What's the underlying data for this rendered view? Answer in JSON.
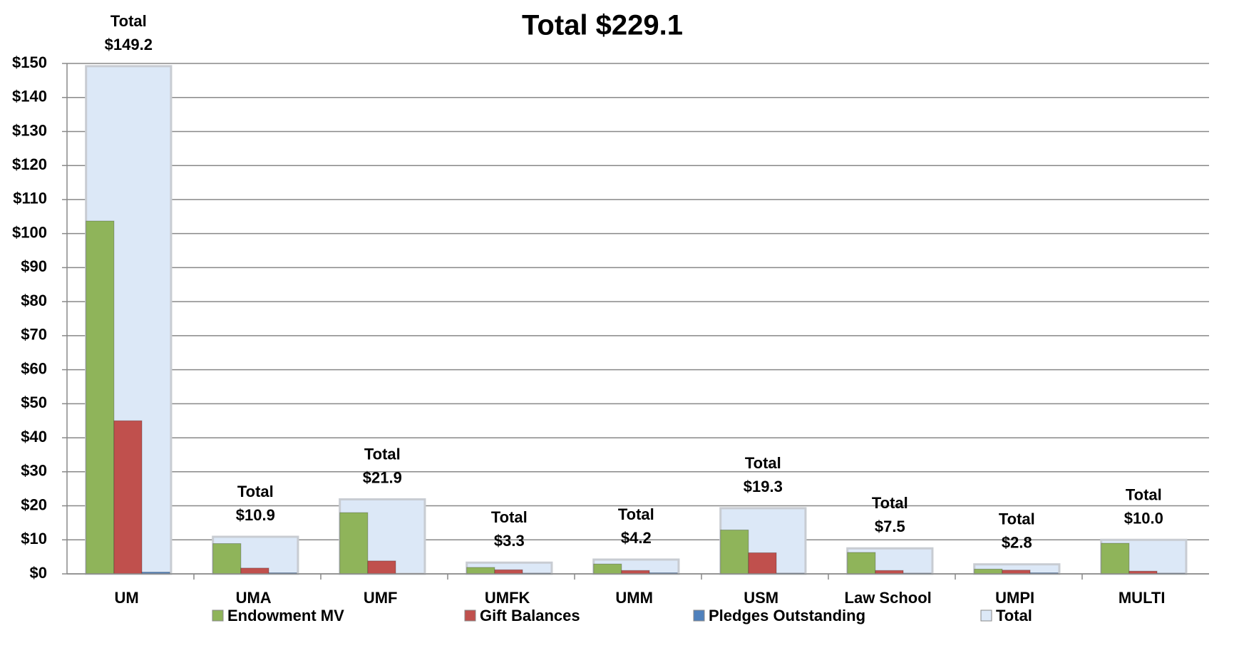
{
  "chart_data": {
    "type": "bar",
    "title": "Total $229.1",
    "categories": [
      "UM",
      "UMA",
      "UMF",
      "UMFK",
      "UMM",
      "USM",
      "Law School",
      "UMPI",
      "MULTI"
    ],
    "series": [
      {
        "name": "Endowment MV",
        "color": "#8fb45a",
        "values": [
          103.7,
          8.9,
          18.0,
          1.9,
          2.9,
          12.9,
          6.3,
          1.4,
          9.0
        ]
      },
      {
        "name": "Gift Balances",
        "color": "#c0504d",
        "values": [
          45.0,
          1.7,
          3.8,
          1.2,
          1.0,
          6.2,
          1.0,
          1.1,
          0.8
        ]
      },
      {
        "name": "Pledges Outstanding",
        "color": "#4f81bd",
        "values": [
          0.5,
          0.3,
          0.1,
          0.2,
          0.3,
          0.2,
          0.2,
          0.3,
          0.2
        ]
      },
      {
        "name": "Total",
        "color": "#dce8f7",
        "values": [
          149.2,
          10.9,
          21.9,
          3.3,
          4.2,
          19.3,
          7.5,
          2.8,
          10.0
        ],
        "value_labels": [
          "Total\n$149.2",
          "Total\n$10.9",
          "Total\n$21.9",
          "Total\n$3.3",
          "Total\n$4.2",
          "Total\n$19.3",
          "Total\n$7.5",
          "Total\n$2.8",
          "Total\n$10.0"
        ]
      }
    ],
    "ylim": [
      0,
      150
    ],
    "yticks": [
      {
        "value": 0,
        "label": "$0"
      },
      {
        "value": 10,
        "label": "$10"
      },
      {
        "value": 20,
        "label": "$20"
      },
      {
        "value": 30,
        "label": "$30"
      },
      {
        "value": 40,
        "label": "$40"
      },
      {
        "value": 50,
        "label": "$50"
      },
      {
        "value": 60,
        "label": "$60"
      },
      {
        "value": 70,
        "label": "$70"
      },
      {
        "value": 80,
        "label": "$80"
      },
      {
        "value": 90,
        "label": "$90"
      },
      {
        "value": 100,
        "label": "$100"
      },
      {
        "value": 110,
        "label": "$110"
      },
      {
        "value": 120,
        "label": "$120"
      },
      {
        "value": 130,
        "label": "$130"
      },
      {
        "value": 140,
        "label": "$140"
      },
      {
        "value": 150,
        "label": "$150"
      }
    ],
    "grid": true,
    "legend": "bottom"
  }
}
